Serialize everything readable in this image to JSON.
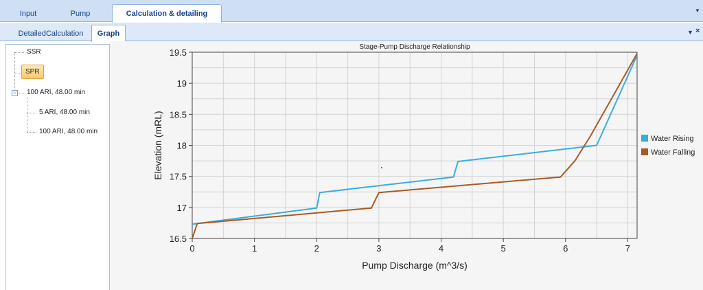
{
  "top_tabs": [
    {
      "label": "Input"
    },
    {
      "label": "Pump"
    },
    {
      "label": "Calculation & detailing",
      "active": true
    }
  ],
  "sub_tabs": [
    {
      "label": "DetailedCalculation"
    },
    {
      "label": "Graph",
      "active": true
    }
  ],
  "tree": {
    "items": [
      {
        "label": "SSR"
      },
      {
        "label": "SPR",
        "selected": true
      },
      {
        "label": "100 ARI, 48.00 min",
        "expanded": true
      },
      {
        "label": "5 ARI, 48.00 min"
      },
      {
        "label": "100 ARI, 48.00 min"
      }
    ],
    "expander_symbol": "−"
  },
  "colors": {
    "water_rising": "#3aace0",
    "water_falling": "#a85a24",
    "accent": "#15428b"
  },
  "chart_data": {
    "type": "line",
    "title": "Stage-Pump Discharge Relationship",
    "xlabel": "Pump Discharge (m^3/s)",
    "ylabel": "Elevation (mRL)",
    "xlim": [
      0,
      7.15
    ],
    "ylim": [
      16.5,
      19.5
    ],
    "xticks": [
      0,
      1,
      2,
      3,
      4,
      5,
      6,
      7
    ],
    "yticks": [
      16.5,
      17,
      17.5,
      18,
      18.5,
      19,
      19.5
    ],
    "ytick_labels": [
      "16.5",
      "17",
      "17.5",
      "18",
      "18.5",
      "19",
      "19.5"
    ],
    "grid": true,
    "legend_position": "right",
    "series": [
      {
        "name": "Water Rising",
        "color": "#3aace0",
        "points": [
          [
            0,
            16.73
          ],
          [
            2.0,
            16.99
          ],
          [
            2.05,
            17.24
          ],
          [
            4.2,
            17.49
          ],
          [
            4.27,
            17.74
          ],
          [
            6.5,
            18.0
          ],
          [
            7.15,
            19.45
          ]
        ]
      },
      {
        "name": "Water Falling",
        "color": "#a85a24",
        "points": [
          [
            0,
            16.5
          ],
          [
            0.08,
            16.74
          ],
          [
            2.88,
            16.99
          ],
          [
            3.0,
            17.24
          ],
          [
            5.92,
            17.49
          ],
          [
            6.15,
            17.75
          ],
          [
            6.4,
            18.15
          ],
          [
            7.15,
            19.48
          ]
        ]
      }
    ]
  }
}
